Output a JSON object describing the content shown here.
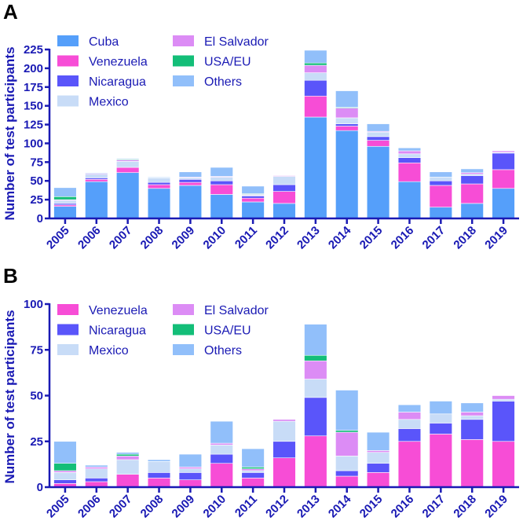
{
  "chart_data": [
    {
      "type": "bar",
      "stacked": true,
      "panel_label": "A",
      "title": "",
      "xlabel": "",
      "ylabel": "Number of test participants",
      "ylim": [
        0,
        225
      ],
      "yticks": [
        0,
        25,
        50,
        75,
        100,
        125,
        150,
        175,
        200,
        225
      ],
      "ytick_labels": [
        "0",
        "25",
        "50",
        "75",
        "100",
        "125",
        "150",
        "175",
        "200",
        "225"
      ],
      "grid": false,
      "legend_placement": "top-left",
      "categories": [
        "2005",
        "2006",
        "2007",
        "2008",
        "2009",
        "2010",
        "2011",
        "2012",
        "2013",
        "2014",
        "2015",
        "2016",
        "2017",
        "2018",
        "2019"
      ],
      "series": [
        {
          "name": "Cuba",
          "color": "#559ffa",
          "values": [
            16,
            49,
            61,
            40,
            44,
            32,
            22,
            20,
            135,
            117,
            96,
            49,
            15,
            20,
            40
          ]
        },
        {
          "name": "Venezuela",
          "color": "#f74dd6",
          "values": [
            2,
            3,
            7,
            5,
            4,
            13,
            5,
            16,
            28,
            6,
            8,
            25,
            29,
            26,
            25
          ]
        },
        {
          "name": "Nicaragua",
          "color": "#5a55fa",
          "values": [
            2,
            2,
            0,
            3,
            4,
            5,
            3,
            9,
            21,
            3,
            5,
            7,
            6,
            11,
            22
          ]
        },
        {
          "name": "Mexico",
          "color": "#c8dcf7",
          "values": [
            4,
            5,
            8,
            6,
            2,
            5,
            1,
            11,
            10,
            8,
            6,
            5,
            5,
            2,
            1
          ]
        },
        {
          "name": "El Salvador",
          "color": "#dc8cf5",
          "values": [
            1,
            1,
            2,
            0,
            1,
            1,
            1,
            1,
            10,
            13,
            1,
            4,
            0,
            2,
            2
          ]
        },
        {
          "name": "USA/EU",
          "color": "#13be78",
          "values": [
            4,
            0,
            1,
            0,
            0,
            0,
            1,
            0,
            3,
            1,
            0,
            0,
            0,
            0,
            0
          ]
        },
        {
          "name": "Others",
          "color": "#91bffa",
          "values": [
            12,
            1,
            1,
            1,
            7,
            12,
            10,
            0,
            17,
            22,
            10,
            4,
            7,
            5,
            0
          ]
        }
      ]
    },
    {
      "type": "bar",
      "stacked": true,
      "panel_label": "B",
      "title": "",
      "xlabel": "",
      "ylabel": "Number of test participants",
      "ylim": [
        0,
        100
      ],
      "yticks": [
        0,
        25,
        50,
        75,
        100
      ],
      "ytick_labels": [
        "0",
        "25",
        "50",
        "75",
        "100"
      ],
      "grid": false,
      "legend_placement": "top-left",
      "categories": [
        "2005",
        "2006",
        "2007",
        "2008",
        "2009",
        "2010",
        "2011",
        "2012",
        "2013",
        "2014",
        "2015",
        "2016",
        "2017",
        "2018",
        "2019"
      ],
      "series": [
        {
          "name": "Venezuela",
          "color": "#f74dd6",
          "values": [
            2,
            3,
            7,
            5,
            4,
            13,
            5,
            16,
            28,
            6,
            8,
            25,
            29,
            26,
            25
          ]
        },
        {
          "name": "Nicaragua",
          "color": "#5a55fa",
          "values": [
            2,
            2,
            0,
            3,
            4,
            5,
            3,
            9,
            21,
            3,
            5,
            7,
            6,
            11,
            22
          ]
        },
        {
          "name": "Mexico",
          "color": "#c8dcf7",
          "values": [
            4,
            5,
            8,
            6,
            2,
            5,
            1,
            11,
            10,
            8,
            6,
            5,
            5,
            2,
            1
          ]
        },
        {
          "name": "El Salvador",
          "color": "#dc8cf5",
          "values": [
            1,
            1,
            2,
            0,
            1,
            1,
            1,
            1,
            10,
            13,
            1,
            4,
            0,
            2,
            2
          ]
        },
        {
          "name": "USA/EU",
          "color": "#13be78",
          "values": [
            4,
            0,
            1,
            0,
            0,
            0,
            1,
            0,
            3,
            1,
            0,
            0,
            0,
            0,
            0
          ]
        },
        {
          "name": "Others",
          "color": "#91bffa",
          "values": [
            12,
            1,
            1,
            1,
            7,
            12,
            10,
            0,
            17,
            22,
            10,
            4,
            7,
            5,
            0
          ]
        }
      ]
    }
  ]
}
